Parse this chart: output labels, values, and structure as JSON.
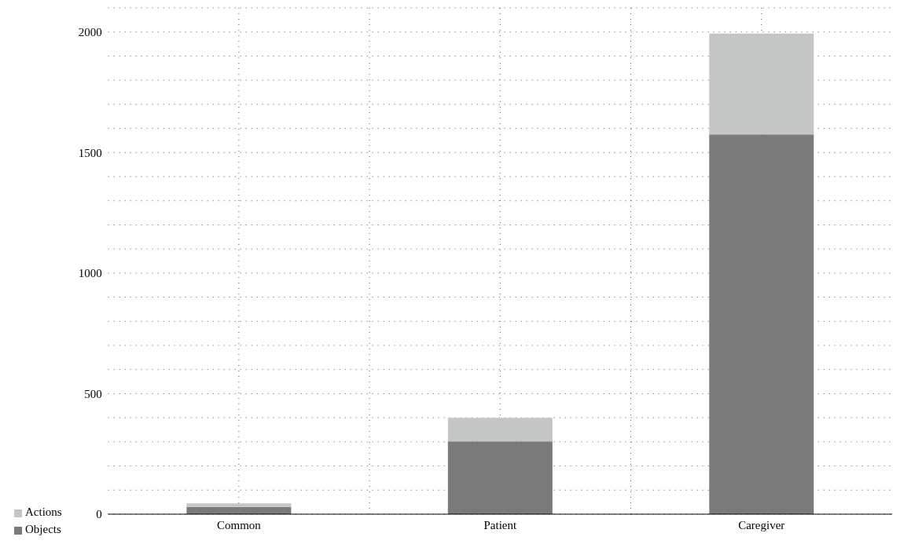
{
  "chart_data": {
    "type": "bar",
    "stacked": true,
    "categories": [
      "Common",
      "Patient",
      "Caregiver"
    ],
    "series": [
      {
        "name": "Objects",
        "color": "#7a7a7a",
        "values": [
          30,
          302,
          1575
        ]
      },
      {
        "name": "Actions",
        "color": "#c4c6c5",
        "values": [
          15,
          98,
          418
        ]
      }
    ],
    "ylim": [
      0,
      2100
    ],
    "yticks": [
      0,
      {
        "value": 100,
        "label": null
      },
      {
        "value": 200,
        "label": null
      },
      {
        "value": 300,
        "label": null
      },
      {
        "value": 400,
        "label": null
      },
      500,
      {
        "value": 600,
        "label": null
      },
      {
        "value": 700,
        "label": null
      },
      {
        "value": 800,
        "label": null
      },
      {
        "value": 900,
        "label": null
      },
      1000,
      {
        "value": 1100,
        "label": null
      },
      {
        "value": 1200,
        "label": null
      },
      {
        "value": 1300,
        "label": null
      },
      {
        "value": 1400,
        "label": null
      },
      1500,
      {
        "value": 1600,
        "label": null
      },
      {
        "value": 1700,
        "label": null
      },
      {
        "value": 1800,
        "label": null
      },
      {
        "value": 1900,
        "label": null
      },
      2000
    ],
    "grid": true,
    "legend": "bottom left"
  }
}
